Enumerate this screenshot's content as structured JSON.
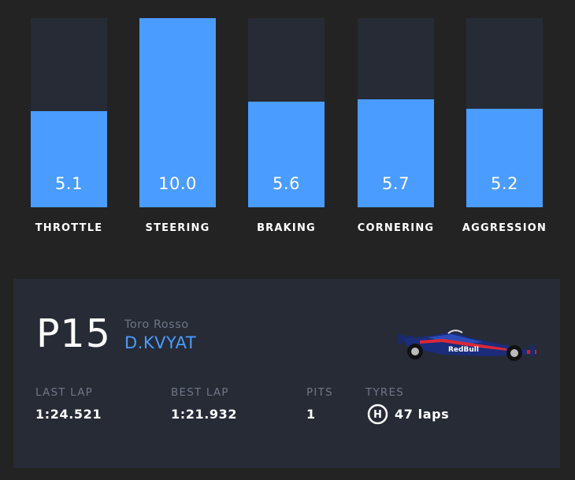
{
  "bars": [
    {
      "label": "THROTTLE",
      "value": "5.1",
      "fraction": 0.51
    },
    {
      "label": "STEERING",
      "value": "10.0",
      "fraction": 1.0
    },
    {
      "label": "BRAKING",
      "value": "5.6",
      "fraction": 0.56
    },
    {
      "label": "CORNERING",
      "value": "5.7",
      "fraction": 0.57
    },
    {
      "label": "AGGRESSION",
      "value": "5.2",
      "fraction": 0.52
    }
  ],
  "driver_card": {
    "position": "P15",
    "team": "Toro Rosso",
    "driver": "D.KVYAT",
    "car_icon": "f1-car-icon",
    "stats": {
      "last_lap_label": "LAST LAP",
      "last_lap_value": "1:24.521",
      "best_lap_label": "BEST LAP",
      "best_lap_value": "1:21.932",
      "pits_label": "PITS",
      "pits_value": "1",
      "tyres_label": "TYRES",
      "tyre_compound": "H",
      "tyre_laps": "47 laps"
    }
  },
  "colors": {
    "background": "#232323",
    "panel": "#262b36",
    "accent_blue": "#4a9cff",
    "muted_text": "#6f7685"
  }
}
